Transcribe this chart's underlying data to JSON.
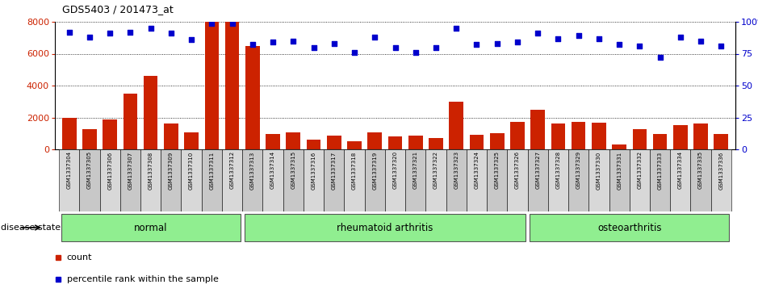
{
  "title": "GDS5403 / 201473_at",
  "samples": [
    "GSM1337304",
    "GSM1337305",
    "GSM1337306",
    "GSM1337307",
    "GSM1337308",
    "GSM1337309",
    "GSM1337310",
    "GSM1337311",
    "GSM1337312",
    "GSM1337313",
    "GSM1337314",
    "GSM1337315",
    "GSM1337316",
    "GSM1337317",
    "GSM1337318",
    "GSM1337319",
    "GSM1337320",
    "GSM1337321",
    "GSM1337322",
    "GSM1337323",
    "GSM1337324",
    "GSM1337325",
    "GSM1337326",
    "GSM1337327",
    "GSM1337328",
    "GSM1337329",
    "GSM1337330",
    "GSM1337331",
    "GSM1337332",
    "GSM1337333",
    "GSM1337334",
    "GSM1337335",
    "GSM1337336"
  ],
  "counts": [
    2000,
    1250,
    1850,
    3500,
    4600,
    1600,
    1050,
    8000,
    8000,
    6500,
    950,
    1050,
    600,
    850,
    500,
    1050,
    800,
    850,
    700,
    3000,
    900,
    1000,
    1700,
    2500,
    1600,
    1700,
    1650,
    300,
    1250,
    950,
    1500,
    1600,
    950
  ],
  "percentiles": [
    92,
    88,
    91,
    92,
    95,
    91,
    86,
    99,
    99,
    82,
    84,
    85,
    80,
    83,
    76,
    88,
    80,
    76,
    80,
    95,
    82,
    83,
    84,
    91,
    87,
    89,
    87,
    82,
    81,
    72,
    88,
    85,
    81
  ],
  "groups": [
    {
      "label": "normal",
      "start": 0,
      "end": 8
    },
    {
      "label": "rheumatoid arthritis",
      "start": 9,
      "end": 22
    },
    {
      "label": "osteoarthritis",
      "start": 23,
      "end": 32
    }
  ],
  "bar_color": "#CC2200",
  "dot_color": "#0000CC",
  "group_color": "#90EE90",
  "ylim_left": [
    0,
    8000
  ],
  "ylim_right": [
    0,
    100
  ],
  "yticks_left": [
    0,
    2000,
    4000,
    6000,
    8000
  ],
  "yticks_right": [
    0,
    25,
    50,
    75,
    100
  ],
  "figsize": [
    9.39,
    3.63
  ],
  "dpi": 100
}
